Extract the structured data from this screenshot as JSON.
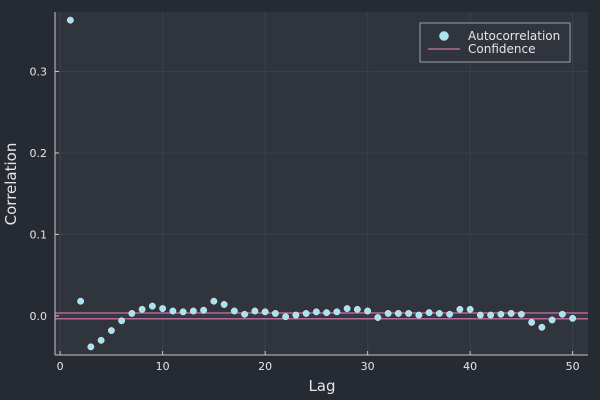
{
  "colors": {
    "background": "#262a33",
    "plot_area": "#30343c",
    "grid": "#3c4049",
    "axis": "#c8c8c8",
    "points": "#a7e3f2",
    "confidence": "#b46a99"
  },
  "chart_data": {
    "type": "scatter",
    "title": "",
    "xlabel": "Lag",
    "ylabel": "Correlation",
    "xlim": [
      -0.5,
      51.5
    ],
    "ylim": [
      -0.048,
      0.373
    ],
    "xticks": [
      0,
      10,
      20,
      30,
      40,
      50
    ],
    "yticks": [
      0.0,
      0.1,
      0.2,
      0.3
    ],
    "xtick_labels": [
      "0",
      "10",
      "20",
      "30",
      "40",
      "50"
    ],
    "ytick_labels": [
      "0.0",
      "0.1",
      "0.2",
      "0.3"
    ],
    "grid": true,
    "legend_position": "top-right",
    "series": [
      {
        "name": "Autocorrelation",
        "kind": "scatter",
        "x": [
          1,
          2,
          3,
          4,
          5,
          6,
          7,
          8,
          9,
          10,
          11,
          12,
          13,
          14,
          15,
          16,
          17,
          18,
          19,
          20,
          21,
          22,
          23,
          24,
          25,
          26,
          27,
          28,
          29,
          30,
          31,
          32,
          33,
          34,
          35,
          36,
          37,
          38,
          39,
          40,
          41,
          42,
          43,
          44,
          45,
          46,
          47,
          48,
          49,
          50
        ],
        "y": [
          0.363,
          0.018,
          -0.038,
          -0.03,
          -0.018,
          -0.006,
          0.003,
          0.008,
          0.012,
          0.009,
          0.006,
          0.005,
          0.006,
          0.007,
          0.018,
          0.014,
          0.006,
          0.002,
          0.006,
          0.005,
          0.003,
          -0.001,
          0.001,
          0.003,
          0.005,
          0.004,
          0.005,
          0.009,
          0.008,
          0.006,
          -0.002,
          0.003,
          0.003,
          0.003,
          0.001,
          0.004,
          0.003,
          0.002,
          0.008,
          0.008,
          0.001,
          0.001,
          0.002,
          0.003,
          0.002,
          -0.008,
          -0.014,
          -0.005,
          0.002,
          -0.003
        ]
      },
      {
        "name": "Confidence",
        "kind": "hline",
        "y": [
          0.0035,
          -0.0035
        ]
      }
    ]
  }
}
